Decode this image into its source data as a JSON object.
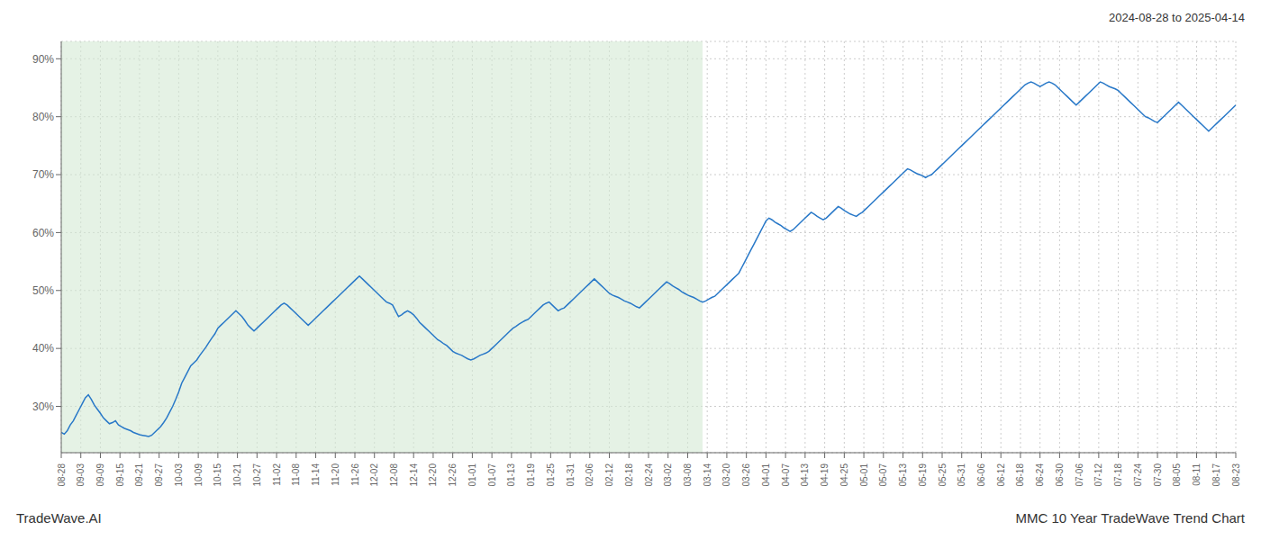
{
  "chart_data": {
    "type": "line",
    "title": "2024-08-28 to 2025-04-14",
    "annotations": [
      "TradeWave.AI",
      "MMC 10 Year TradeWave Trend Chart"
    ],
    "color": "#2878c8",
    "grid": true,
    "xlim": [
      0,
      390
    ],
    "xticks": [
      {
        "value": 0,
        "label": "08-28"
      },
      {
        "value": 6.5,
        "label": "09-03"
      },
      {
        "value": 13,
        "label": "09-09"
      },
      {
        "value": 19.5,
        "label": "09-15"
      },
      {
        "value": 26,
        "label": "09-21"
      },
      {
        "value": 32.5,
        "label": "09-27"
      },
      {
        "value": 39,
        "label": "10-03"
      },
      {
        "value": 45.5,
        "label": "10-09"
      },
      {
        "value": 52,
        "label": "10-15"
      },
      {
        "value": 58.5,
        "label": "10-21"
      },
      {
        "value": 65,
        "label": "10-27"
      },
      {
        "value": 71.5,
        "label": "11-02"
      },
      {
        "value": 78,
        "label": "11-08"
      },
      {
        "value": 84.5,
        "label": "11-14"
      },
      {
        "value": 91,
        "label": "11-20"
      },
      {
        "value": 97.5,
        "label": "11-26"
      },
      {
        "value": 104,
        "label": "12-02"
      },
      {
        "value": 110.5,
        "label": "12-08"
      },
      {
        "value": 117,
        "label": "12-14"
      },
      {
        "value": 123.5,
        "label": "12-20"
      },
      {
        "value": 130,
        "label": "12-26"
      },
      {
        "value": 136.5,
        "label": "01-01"
      },
      {
        "value": 143,
        "label": "01-07"
      },
      {
        "value": 149.5,
        "label": "01-13"
      },
      {
        "value": 156,
        "label": "01-19"
      },
      {
        "value": 162.5,
        "label": "01-25"
      },
      {
        "value": 169,
        "label": "01-31"
      },
      {
        "value": 175.5,
        "label": "02-06"
      },
      {
        "value": 182,
        "label": "02-12"
      },
      {
        "value": 188.5,
        "label": "02-18"
      },
      {
        "value": 195,
        "label": "02-24"
      },
      {
        "value": 201.5,
        "label": "03-02"
      },
      {
        "value": 208,
        "label": "03-08"
      },
      {
        "value": 214.5,
        "label": "03-14"
      },
      {
        "value": 221,
        "label": "03-20"
      },
      {
        "value": 227.5,
        "label": "03-26"
      },
      {
        "value": 234,
        "label": "04-01"
      },
      {
        "value": 240.5,
        "label": "04-07"
      },
      {
        "value": 247,
        "label": "04-13"
      },
      {
        "value": 253.5,
        "label": "04-19"
      },
      {
        "value": 260,
        "label": "04-25"
      },
      {
        "value": 266.5,
        "label": "05-01"
      },
      {
        "value": 273,
        "label": "05-07"
      },
      {
        "value": 279.5,
        "label": "05-13"
      },
      {
        "value": 286,
        "label": "05-19"
      },
      {
        "value": 292.5,
        "label": "05-25"
      },
      {
        "value": 299,
        "label": "05-31"
      },
      {
        "value": 305.5,
        "label": "06-06"
      },
      {
        "value": 312,
        "label": "06-12"
      },
      {
        "value": 318.5,
        "label": "06-18"
      },
      {
        "value": 325,
        "label": "06-24"
      },
      {
        "value": 331.5,
        "label": "06-30"
      },
      {
        "value": 338,
        "label": "07-06"
      },
      {
        "value": 344.5,
        "label": "07-12"
      },
      {
        "value": 351,
        "label": "07-18"
      },
      {
        "value": 357.5,
        "label": "07-24"
      },
      {
        "value": 364,
        "label": "07-30"
      },
      {
        "value": 370.5,
        "label": "08-05"
      },
      {
        "value": 377,
        "label": "08-11"
      },
      {
        "value": 383.5,
        "label": "08-17"
      },
      {
        "value": 390,
        "label": "08-23"
      }
    ],
    "ylim": [
      22,
      93
    ],
    "yticks": [
      {
        "value": 30,
        "label": "30%"
      },
      {
        "value": 40,
        "label": "40%"
      },
      {
        "value": 50,
        "label": "50%"
      },
      {
        "value": 60,
        "label": "60%"
      },
      {
        "value": 70,
        "label": "70%"
      },
      {
        "value": 80,
        "label": "80%"
      },
      {
        "value": 90,
        "label": "90%"
      }
    ],
    "shaded_region": {
      "x": [
        0,
        212.94
      ],
      "color": "#d4ead4"
    },
    "values": [
      25.5,
      25.2,
      25.8,
      26.8,
      27.5,
      28.5,
      29.5,
      30.5,
      31.5,
      32.0,
      31.2,
      30.2,
      29.5,
      28.8,
      28.0,
      27.5,
      27.0,
      27.2,
      27.5,
      26.8,
      26.5,
      26.2,
      26.0,
      25.8,
      25.5,
      25.3,
      25.1,
      25.0,
      24.9,
      24.8,
      25.0,
      25.5,
      26.0,
      26.5,
      27.2,
      28.0,
      29.0,
      30.0,
      31.2,
      32.5,
      34.0,
      35.0,
      36.0,
      37.0,
      37.5,
      38.0,
      38.8,
      39.5,
      40.2,
      41.0,
      41.8,
      42.5,
      43.5,
      44.0,
      44.5,
      45.0,
      45.5,
      46.0,
      46.5,
      46.0,
      45.5,
      44.8,
      44.0,
      43.5,
      43.0,
      43.5,
      44.0,
      44.5,
      45.0,
      45.5,
      46.0,
      46.5,
      47.0,
      47.5,
      47.8,
      47.5,
      47.0,
      46.5,
      46.0,
      45.5,
      45.0,
      44.5,
      44.0,
      44.5,
      45.0,
      45.5,
      46.0,
      46.5,
      47.0,
      47.5,
      48.0,
      48.5,
      49.0,
      49.5,
      50.0,
      50.5,
      51.0,
      51.5,
      52.0,
      52.5,
      52.0,
      51.5,
      51.0,
      50.5,
      50.0,
      49.5,
      49.0,
      48.5,
      48.0,
      47.8,
      47.5,
      46.5,
      45.5,
      45.8,
      46.2,
      46.5,
      46.2,
      45.8,
      45.2,
      44.5,
      44.0,
      43.5,
      43.0,
      42.5,
      42.0,
      41.5,
      41.2,
      40.8,
      40.5,
      40.0,
      39.5,
      39.2,
      39.0,
      38.8,
      38.5,
      38.2,
      38.0,
      38.2,
      38.5,
      38.8,
      39.0,
      39.2,
      39.5,
      40.0,
      40.5,
      41.0,
      41.5,
      42.0,
      42.5,
      43.0,
      43.5,
      43.8,
      44.2,
      44.5,
      44.8,
      45.0,
      45.5,
      46.0,
      46.5,
      47.0,
      47.5,
      47.8,
      48.0,
      47.5,
      47.0,
      46.5,
      46.8,
      47.0,
      47.5,
      48.0,
      48.5,
      49.0,
      49.5,
      50.0,
      50.5,
      51.0,
      51.5,
      52.0,
      51.5,
      51.0,
      50.5,
      50.0,
      49.5,
      49.2,
      49.0,
      48.8,
      48.5,
      48.2,
      48.0,
      47.8,
      47.5,
      47.2,
      47.0,
      47.5,
      48.0,
      48.5,
      49.0,
      49.5,
      50.0,
      50.5,
      51.0,
      51.5,
      51.2,
      50.8,
      50.5,
      50.2,
      49.8,
      49.5,
      49.2,
      49.0,
      48.8,
      48.5,
      48.2,
      48.0,
      48.2,
      48.5,
      48.8,
      49.0,
      49.5,
      50.0,
      50.5,
      51.0,
      51.5,
      52.0,
      52.5,
      53.0,
      54.0,
      55.0,
      56.0,
      57.0,
      58.0,
      59.0,
      60.0,
      61.0,
      62.0,
      62.5,
      62.2,
      61.8,
      61.5,
      61.2,
      60.8,
      60.5,
      60.2,
      60.5,
      61.0,
      61.5,
      62.0,
      62.5,
      63.0,
      63.5,
      63.2,
      62.8,
      62.5,
      62.2,
      62.5,
      63.0,
      63.5,
      64.0,
      64.5,
      64.2,
      63.8,
      63.5,
      63.2,
      63.0,
      62.8,
      63.2,
      63.5,
      64.0,
      64.5,
      65.0,
      65.5,
      66.0,
      66.5,
      67.0,
      67.5,
      68.0,
      68.5,
      69.0,
      69.5,
      70.0,
      70.5,
      71.0,
      70.8,
      70.5,
      70.2,
      70.0,
      69.8,
      69.5,
      69.8,
      70.0,
      70.5,
      71.0,
      71.5,
      72.0,
      72.5,
      73.0,
      73.5,
      74.0,
      74.5,
      75.0,
      75.5,
      76.0,
      76.5,
      77.0,
      77.5,
      78.0,
      78.5,
      79.0,
      79.5,
      80.0,
      80.5,
      81.0,
      81.5,
      82.0,
      82.5,
      83.0,
      83.5,
      84.0,
      84.5,
      85.0,
      85.5,
      85.8,
      86.0,
      85.8,
      85.5,
      85.2,
      85.5,
      85.8,
      86.0,
      85.8,
      85.5,
      85.0,
      84.5,
      84.0,
      83.5,
      83.0,
      82.5,
      82.0,
      82.5,
      83.0,
      83.5,
      84.0,
      84.5,
      85.0,
      85.5,
      86.0,
      85.8,
      85.5,
      85.2,
      85.0,
      84.8,
      84.5,
      84.0,
      83.5,
      83.0,
      82.5,
      82.0,
      81.5,
      81.0,
      80.5,
      80.0,
      79.8,
      79.5,
      79.2,
      79.0,
      79.5,
      80.0,
      80.5,
      81.0,
      81.5,
      82.0,
      82.5,
      82.0,
      81.5,
      81.0,
      80.5,
      80.0,
      79.5,
      79.0,
      78.5,
      78.0,
      77.5,
      78.0,
      78.5,
      79.0,
      79.5,
      80.0,
      80.5,
      81.0,
      81.5,
      82.0
    ]
  }
}
